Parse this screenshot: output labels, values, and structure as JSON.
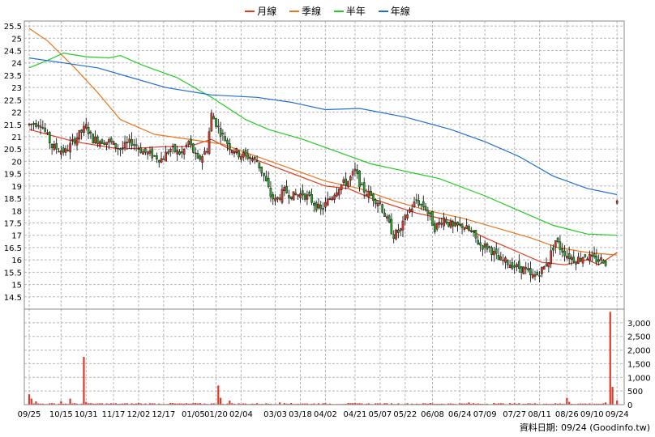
{
  "chart_data": {
    "type": "candlestick",
    "legend": {
      "items": [
        {
          "name": "月線",
          "color": "#e03a1e"
        },
        {
          "name": "季線",
          "color": "#e8761e"
        },
        {
          "name": "半年",
          "color": "#22cc22"
        },
        {
          "name": "年線",
          "color": "#1f6fd6"
        }
      ],
      "placement": "top-center"
    },
    "price_axis": {
      "ylim": [
        14.0,
        25.7
      ],
      "tick_labels": [
        "14.5",
        "15",
        "15.5",
        "16",
        "16.5",
        "17",
        "17.5",
        "18",
        "18.5",
        "19",
        "19.5",
        "20",
        "20.5",
        "21",
        "21.5",
        "22",
        "22.5",
        "23",
        "23.5",
        "24",
        "24.5",
        "25",
        "25.5"
      ],
      "tick_values": [
        14.5,
        15,
        15.5,
        16,
        16.5,
        17,
        17.5,
        18,
        18.5,
        19,
        19.5,
        20,
        20.5,
        21,
        21.5,
        22,
        22.5,
        23,
        23.5,
        24,
        24.5,
        25,
        25.5
      ],
      "grid": true
    },
    "volume_axis": {
      "ylim": [
        0,
        3500
      ],
      "tick_labels": [
        "0",
        "500",
        "1,000",
        "1,500",
        "2,000",
        "2,500",
        "3,000"
      ],
      "tick_values": [
        0,
        500,
        1000,
        1500,
        2000,
        2500,
        3000
      ],
      "grid": true
    },
    "x_tick_labels": [
      "09/25",
      "10/15",
      "10/31",
      "11/17",
      "12/02",
      "12/17",
      "01/05",
      "01/20",
      "02/04",
      "03/03",
      "03/18",
      "04/02",
      "04/21",
      "05/07",
      "05/22",
      "06/08",
      "06/24",
      "07/09",
      "07/27",
      "08/11",
      "08/26",
      "09/10",
      "09/24"
    ],
    "x_tick_positions": [
      0,
      14,
      25,
      37,
      48,
      59,
      72,
      82,
      93,
      108,
      119,
      130,
      143,
      154,
      165,
      177,
      189,
      200,
      213,
      224,
      236,
      247,
      258
    ],
    "num_days": 260,
    "series": [
      {
        "name": "月線",
        "points": [
          [
            0,
            21.3
          ],
          [
            20,
            20.8
          ],
          [
            40,
            20.5
          ],
          [
            60,
            20.6
          ],
          [
            70,
            20.6
          ],
          [
            80,
            20.9
          ],
          [
            90,
            20.4
          ],
          [
            110,
            19.7
          ],
          [
            130,
            19.0
          ],
          [
            140,
            18.9
          ],
          [
            150,
            18.5
          ],
          [
            170,
            17.9
          ],
          [
            185,
            17.6
          ],
          [
            200,
            16.9
          ],
          [
            215,
            16.3
          ],
          [
            225,
            15.9
          ],
          [
            235,
            15.8
          ],
          [
            245,
            16.0
          ],
          [
            250,
            15.8
          ],
          [
            258,
            16.3
          ]
        ]
      },
      {
        "name": "季線",
        "points": [
          [
            0,
            25.4
          ],
          [
            8,
            24.9
          ],
          [
            20,
            23.8
          ],
          [
            30,
            22.8
          ],
          [
            40,
            21.7
          ],
          [
            55,
            21.1
          ],
          [
            70,
            20.9
          ],
          [
            85,
            20.7
          ],
          [
            100,
            20.2
          ],
          [
            115,
            19.7
          ],
          [
            130,
            19.2
          ],
          [
            145,
            18.9
          ],
          [
            160,
            18.4
          ],
          [
            175,
            18.0
          ],
          [
            190,
            17.7
          ],
          [
            205,
            17.3
          ],
          [
            220,
            16.9
          ],
          [
            232,
            16.5
          ],
          [
            245,
            16.3
          ],
          [
            258,
            16.2
          ]
        ]
      },
      {
        "name": "半年",
        "points": [
          [
            0,
            23.8
          ],
          [
            8,
            24.1
          ],
          [
            15,
            24.4
          ],
          [
            25,
            24.25
          ],
          [
            35,
            24.2
          ],
          [
            40,
            24.3
          ],
          [
            50,
            23.9
          ],
          [
            65,
            23.4
          ],
          [
            80,
            22.6
          ],
          [
            95,
            21.7
          ],
          [
            105,
            21.3
          ],
          [
            120,
            20.9
          ],
          [
            135,
            20.4
          ],
          [
            150,
            19.9
          ],
          [
            165,
            19.6
          ],
          [
            180,
            19.3
          ],
          [
            200,
            18.6
          ],
          [
            215,
            18.0
          ],
          [
            230,
            17.4
          ],
          [
            245,
            17.05
          ],
          [
            258,
            17.0
          ]
        ]
      },
      {
        "name": "年線",
        "points": [
          [
            0,
            24.2
          ],
          [
            15,
            24.0
          ],
          [
            30,
            23.8
          ],
          [
            45,
            23.4
          ],
          [
            60,
            23.0
          ],
          [
            80,
            22.7
          ],
          [
            100,
            22.6
          ],
          [
            115,
            22.4
          ],
          [
            130,
            22.1
          ],
          [
            145,
            22.15
          ],
          [
            165,
            21.8
          ],
          [
            185,
            21.3
          ],
          [
            200,
            20.8
          ],
          [
            215,
            20.2
          ],
          [
            230,
            19.4
          ],
          [
            245,
            18.9
          ],
          [
            258,
            18.65
          ]
        ]
      }
    ],
    "candles": {
      "color_up": "#d93a2b",
      "color_down": "#2ca02c",
      "anchors": [
        [
          0,
          21.5
        ],
        [
          5,
          21.6
        ],
        [
          10,
          20.6
        ],
        [
          16,
          20.4
        ],
        [
          20,
          20.9
        ],
        [
          25,
          21.4
        ],
        [
          28,
          20.9
        ],
        [
          35,
          20.8
        ],
        [
          40,
          20.5
        ],
        [
          45,
          20.8
        ],
        [
          50,
          20.4
        ],
        [
          58,
          20.1
        ],
        [
          62,
          20.5
        ],
        [
          67,
          20.3
        ],
        [
          70,
          20.8
        ],
        [
          74,
          20.0
        ],
        [
          78,
          20.5
        ],
        [
          80,
          21.9
        ],
        [
          84,
          21.2
        ],
        [
          88,
          20.6
        ],
        [
          92,
          20.3
        ],
        [
          96,
          20.2
        ],
        [
          100,
          20.0
        ],
        [
          103,
          19.4
        ],
        [
          106,
          18.6
        ],
        [
          108,
          18.4
        ],
        [
          112,
          18.8
        ],
        [
          116,
          18.6
        ],
        [
          120,
          18.7
        ],
        [
          124,
          18.4
        ],
        [
          128,
          18.0
        ],
        [
          132,
          18.5
        ],
        [
          136,
          19.0
        ],
        [
          140,
          19.2
        ],
        [
          143,
          19.6
        ],
        [
          146,
          18.9
        ],
        [
          150,
          18.6
        ],
        [
          154,
          18.3
        ],
        [
          157,
          17.6
        ],
        [
          160,
          17.0
        ],
        [
          163,
          17.2
        ],
        [
          166,
          17.9
        ],
        [
          170,
          18.4
        ],
        [
          174,
          18.1
        ],
        [
          178,
          17.3
        ],
        [
          182,
          17.7
        ],
        [
          186,
          17.3
        ],
        [
          190,
          17.4
        ],
        [
          194,
          17.1
        ],
        [
          198,
          16.6
        ],
        [
          202,
          16.5
        ],
        [
          206,
          16.0
        ],
        [
          210,
          15.9
        ],
        [
          214,
          15.7
        ],
        [
          218,
          15.6
        ],
        [
          220,
          15.3
        ],
        [
          223,
          15.4
        ],
        [
          226,
          15.7
        ],
        [
          228,
          16.0
        ],
        [
          231,
          16.8
        ],
        [
          233,
          16.5
        ],
        [
          236,
          16.2
        ],
        [
          240,
          16.0
        ],
        [
          244,
          16.2
        ],
        [
          248,
          16.0
        ],
        [
          252,
          16.0
        ],
        [
          253,
          15.9
        ]
      ],
      "gap_after_index": 253,
      "last": {
        "index": 258,
        "open": 18.3,
        "close": 18.4,
        "high": 18.45,
        "low": 18.25
      }
    },
    "volume": {
      "baseline": 40,
      "spikes": [
        [
          0,
          380
        ],
        [
          1,
          220
        ],
        [
          3,
          120
        ],
        [
          14,
          130
        ],
        [
          18,
          220
        ],
        [
          24,
          1750
        ],
        [
          25,
          100
        ],
        [
          32,
          50
        ],
        [
          48,
          60
        ],
        [
          53,
          50
        ],
        [
          62,
          60
        ],
        [
          73,
          60
        ],
        [
          83,
          700
        ],
        [
          84,
          250
        ],
        [
          88,
          150
        ],
        [
          110,
          80
        ],
        [
          115,
          60
        ],
        [
          127,
          50
        ],
        [
          140,
          60
        ],
        [
          152,
          50
        ],
        [
          176,
          60
        ],
        [
          193,
          80
        ],
        [
          204,
          60
        ],
        [
          219,
          50
        ],
        [
          236,
          250
        ],
        [
          237,
          100
        ],
        [
          253,
          80
        ],
        [
          255,
          3400
        ],
        [
          256,
          650
        ],
        [
          258,
          150
        ]
      ]
    }
  },
  "source_text": "資料日期: 09/24  (Goodinfo.tw)"
}
